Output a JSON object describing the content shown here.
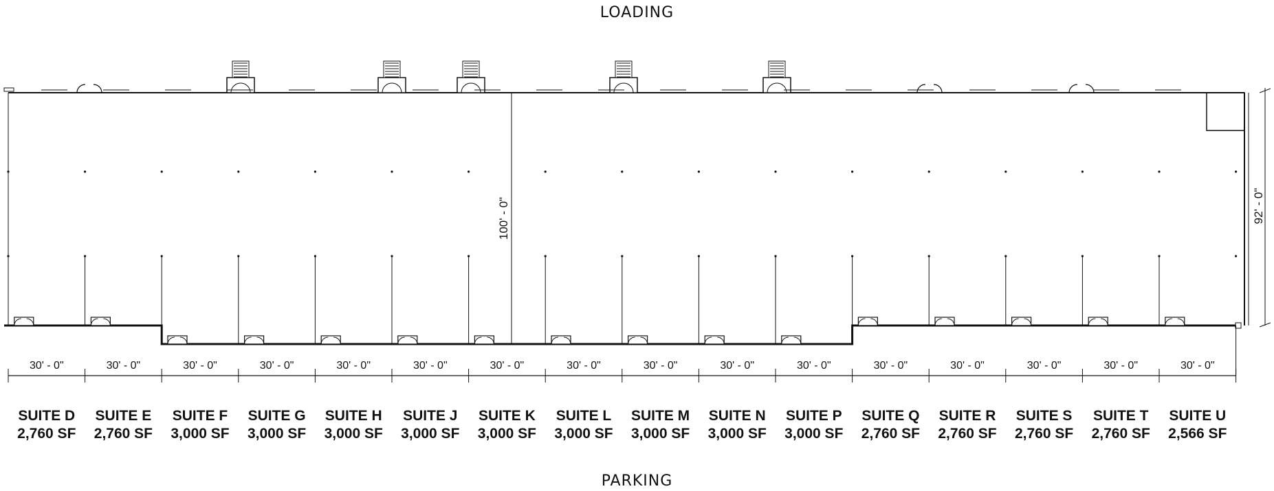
{
  "top_label": "LOADING",
  "bottom_label": "PARKING",
  "depth_dimension": "100' - 0\"",
  "right_dimension": "92' - 0\"",
  "suites": [
    {
      "name": "SUITE D",
      "area": "2,760 SF",
      "width": "30' - 0\"",
      "recessed": false
    },
    {
      "name": "SUITE E",
      "area": "2,760 SF",
      "width": "30' - 0\"",
      "recessed": false
    },
    {
      "name": "SUITE F",
      "area": "3,000 SF",
      "width": "30' - 0\"",
      "recessed": true
    },
    {
      "name": "SUITE G",
      "area": "3,000 SF",
      "width": "30' - 0\"",
      "recessed": true
    },
    {
      "name": "SUITE H",
      "area": "3,000 SF",
      "width": "30' - 0\"",
      "recessed": true
    },
    {
      "name": "SUITE J",
      "area": "3,000 SF",
      "width": "30' - 0\"",
      "recessed": true
    },
    {
      "name": "SUITE K",
      "area": "3,000 SF",
      "width": "30' - 0\"",
      "recessed": true
    },
    {
      "name": "SUITE L",
      "area": "3,000 SF",
      "width": "30' - 0\"",
      "recessed": true
    },
    {
      "name": "SUITE M",
      "area": "3,000 SF",
      "width": "30' - 0\"",
      "recessed": true
    },
    {
      "name": "SUITE N",
      "area": "3,000 SF",
      "width": "30' - 0\"",
      "recessed": true
    },
    {
      "name": "SUITE P",
      "area": "3,000 SF",
      "width": "30' - 0\"",
      "recessed": true
    },
    {
      "name": "SUITE Q",
      "area": "2,760 SF",
      "width": "30' - 0\"",
      "recessed": false
    },
    {
      "name": "SUITE R",
      "area": "2,760 SF",
      "width": "30' - 0\"",
      "recessed": false
    },
    {
      "name": "SUITE S",
      "area": "2,760 SF",
      "width": "30' - 0\"",
      "recessed": false
    },
    {
      "name": "SUITE T",
      "area": "2,760 SF",
      "width": "30' - 0\"",
      "recessed": false
    },
    {
      "name": "SUITE U",
      "area": "2,566 SF",
      "width": "30' - 0\"",
      "recessed": false
    }
  ]
}
